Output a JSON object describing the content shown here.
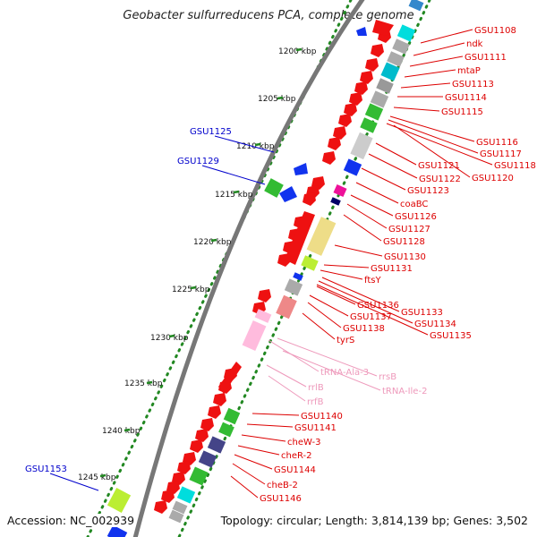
{
  "title": "Geobacter sulfurreducens PCA, complete genome",
  "accession": "Accession: NC_002939",
  "summary": "Topology: circular; Length: 3,814,139 bp; Genes: 3,502",
  "scale_labels": [
    "1200 kbp",
    "1205 kbp",
    "1210 kbp",
    "1215 kbp",
    "1220 kbp",
    "1225 kbp",
    "1230 kbp",
    "1235 kbp",
    "1240 kbp",
    "1245 kbp"
  ],
  "colors": {
    "forward_gene": "#ee1111",
    "label_red": "#dd0000",
    "label_blue": "#0000cc",
    "rna_pink": "#ee99bb",
    "backbone": "#777777",
    "ticks": "#228822"
  },
  "red_gene_labels": [
    "GSU1108",
    "ndk",
    "GSU1111",
    "mtaP",
    "GSU1113",
    "GSU1114",
    "GSU1115",
    "GSU1116",
    "GSU1117",
    "GSU1118",
    "GSU1120",
    "GSU1121",
    "GSU1122",
    "GSU1123",
    "coaBC",
    "GSU1126",
    "GSU1127",
    "GSU1128",
    "GSU1130",
    "GSU1131",
    "ftsY",
    "GSU1133",
    "GSU1134",
    "GSU1135",
    "GSU1136",
    "GSU1137",
    "GSU1138",
    "tyrS",
    "GSU1140",
    "GSU1141",
    "cheW-3",
    "cheR-2",
    "GSU1144",
    "cheB-2",
    "GSU1146"
  ],
  "rna_labels": [
    "tRNA-Ala-3",
    "rrsB",
    "rrlB",
    "tRNA-Ile-2",
    "rrfB"
  ],
  "blue_gene_labels": [
    "GSU1125",
    "GSU1129",
    "GSU1153"
  ]
}
